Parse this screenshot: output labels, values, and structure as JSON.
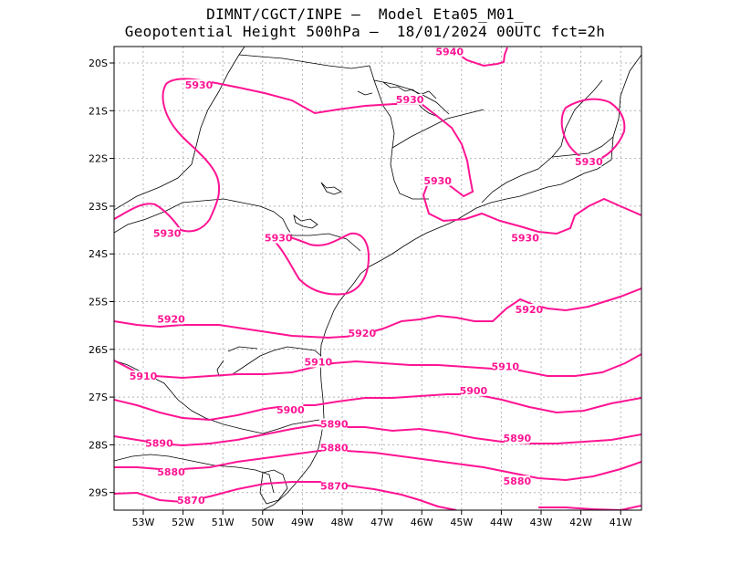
{
  "title": {
    "line1": "DIMNT/CGCT/INPE –  Model Eta05_M01_",
    "line2": "Geopotential Height 500hPa –  18/01/2024 00UTC fct=2h"
  },
  "colors": {
    "contour": "#ff1493",
    "coast": "#000000",
    "grid": "#b4b4b4",
    "frame": "#000000"
  },
  "axes": {
    "lat_labels": [
      "20S",
      "21S",
      "22S",
      "23S",
      "24S",
      "25S",
      "26S",
      "27S",
      "28S",
      "29S"
    ],
    "lon_labels": [
      "53W",
      "52W",
      "51W",
      "50W",
      "49W",
      "48W",
      "47W",
      "46W",
      "45W",
      "44W",
      "43W",
      "42W",
      "41W"
    ]
  },
  "contour_labels": [
    {
      "text": "5940",
      "lon": -45.3,
      "lat": -19.8
    },
    {
      "text": "5930",
      "lon": -51.6,
      "lat": -20.5
    },
    {
      "text": "5930",
      "lon": -46.3,
      "lat": -20.8
    },
    {
      "text": "5930",
      "lon": -41.8,
      "lat": -22.1
    },
    {
      "text": "5930",
      "lon": -45.6,
      "lat": -22.5
    },
    {
      "text": "5930",
      "lon": -52.4,
      "lat": -23.6
    },
    {
      "text": "5930",
      "lon": -49.6,
      "lat": -23.7
    },
    {
      "text": "5930",
      "lon": -43.4,
      "lat": -23.7
    },
    {
      "text": "5920",
      "lon": -52.3,
      "lat": -25.4
    },
    {
      "text": "5920",
      "lon": -47.5,
      "lat": -25.7
    },
    {
      "text": "5920",
      "lon": -43.3,
      "lat": -25.2
    },
    {
      "text": "5910",
      "lon": -53.0,
      "lat": -26.6
    },
    {
      "text": "5910",
      "lon": -48.6,
      "lat": -26.3
    },
    {
      "text": "5910",
      "lon": -43.9,
      "lat": -26.4
    },
    {
      "text": "5900",
      "lon": -49.3,
      "lat": -27.3
    },
    {
      "text": "5900",
      "lon": -44.7,
      "lat": -26.9
    },
    {
      "text": "5890",
      "lon": -48.2,
      "lat": -27.6
    },
    {
      "text": "5890",
      "lon": -52.6,
      "lat": -28.0
    },
    {
      "text": "5890",
      "lon": -43.6,
      "lat": -27.9
    },
    {
      "text": "5880",
      "lon": -48.2,
      "lat": -28.1
    },
    {
      "text": "5880",
      "lon": -52.3,
      "lat": -28.6
    },
    {
      "text": "5880",
      "lon": -43.6,
      "lat": -28.8
    },
    {
      "text": "5870",
      "lon": -48.2,
      "lat": -28.9
    },
    {
      "text": "5870",
      "lon": -51.8,
      "lat": -29.2
    }
  ]
}
